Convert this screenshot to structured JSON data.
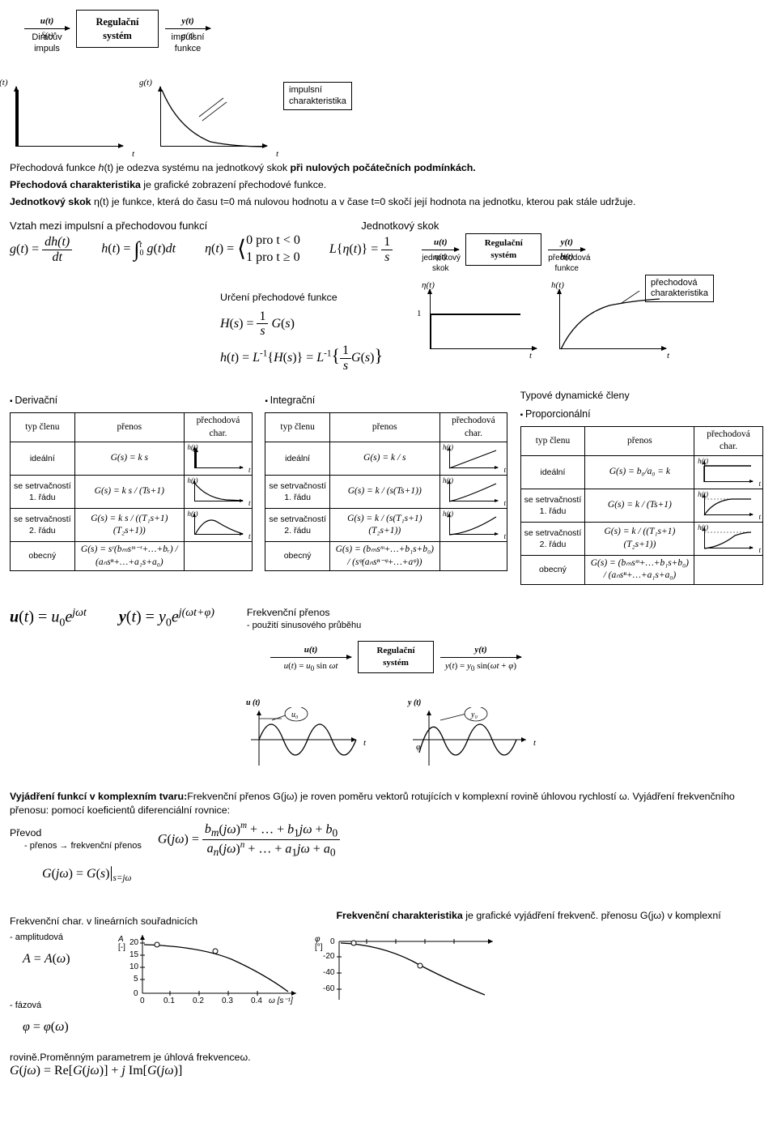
{
  "top": {
    "in_above": "u(t)",
    "in_below": "δ(t)",
    "in_caption": "Diracův impuls",
    "block": "Regulační\nsystém",
    "out_above": "y(t)",
    "out_below": "g(t)",
    "out_caption": "impulsní funkce"
  },
  "impulse_plot": {
    "ylabel": "δ(t)",
    "xlabel": "t"
  },
  "response_plot": {
    "ylabel": "g(t)",
    "xlabel": "t",
    "callout": "impulsní\ncharakteristika"
  },
  "text1": "Přechodová funkce ",
  "text1_hi": "h",
  "text1_arg": "(t)",
  "text1b": " je odezva systému na jednotkový skok ",
  "text1_bold": "při nulových počátečních podmínkách.",
  "text2": "Přechodová charakteristika",
  "text2b": " je grafické zobrazení přechodové funkce.",
  "text3": "Jednotkový skok ",
  "text3b": "η(t) je funkce, která do času t=0 má nulovou hodnotu a v čase t=0 skočí její hodnota na jednotku, kterou pak stále udržuje.",
  "heading_rel": "Vztah mezi impulsní a přechodovou funkcí",
  "heading_step": "Jednotkový skok",
  "eq_g": "g(t) = dh(t) / dt",
  "eq_h": "h(t) = ∫₀ᵗ g(t) dt",
  "eq_eta1": "0  pro  t < 0",
  "eq_eta2": "1  pro  t ≥ 0",
  "eq_Leta": "L{η(t)} = 1/s",
  "blk2": {
    "in_above": "u(t)",
    "in_below": "η(t)",
    "in_caption": "jednotkový skok",
    "block": "Regulační\nsystém",
    "out_above": "y(t)",
    "out_below": "h(t)",
    "out_caption": "přechodová funkce"
  },
  "det_head": "Určení přechodové funkce",
  "eq_Hs": "H(s) = (1/s) G(s)",
  "eq_ht": "h(t) = L⁻¹{H(s)} = L⁻¹{ (1/s) G(s) }",
  "step_plot": {
    "ylabel": "η(t)",
    "xlabel": "t",
    "tick": "1"
  },
  "ht_plot": {
    "ylabel": "h(t)",
    "xlabel": "t",
    "callout": "přechodová\ncharakteristika"
  },
  "typy_heading": "Typové dynamické členy",
  "members": {
    "derivacni": {
      "title": "Derivační",
      "col1": "typ členu",
      "col2": "přenos",
      "col3": "přechodová char.",
      "rows": [
        {
          "typ": "ideální",
          "g": "G(s) = k s",
          "curve": "impulse"
        },
        {
          "typ": "se setrvačností\n1. řádu",
          "g": "G(s) = k s / (Ts+1)",
          "curve": "expdecay"
        },
        {
          "typ": "se setrvačností\n2. řádu",
          "g": "G(s) = k s / ((T₁s+1)(T₂s+1))",
          "curve": "hump"
        },
        {
          "typ": "obecný",
          "g": "G(s) = sʳ(bₘsᵐ⁻ʳ+…+bᵣ) / (aₙsⁿ+…+a₁s+a₀)",
          "curve": ""
        }
      ]
    },
    "integracni": {
      "title": "Integrační",
      "col1": "typ členu",
      "col2": "přenos",
      "col3": "přechodová char.",
      "rows": [
        {
          "typ": "ideální",
          "g": "G(s) = k / s",
          "curve": "ramp"
        },
        {
          "typ": "se setrvačností\n1. řádu",
          "g": "G(s) = k / (s(Ts+1))",
          "curve": "ramp-soft"
        },
        {
          "typ": "se setrvačností\n2. řádu",
          "g": "G(s) = k / (s(T₁s+1)(T₂s+1))",
          "curve": "ramp-softer"
        },
        {
          "typ": "obecný",
          "g": "G(s) = (bₘsᵐ+…+b₁s+b₀) / (sᵠ(aₙsⁿ⁻ᵠ+…+aᵠ))",
          "curve": ""
        }
      ]
    },
    "proporcionalni": {
      "title": "Proporcionální",
      "col1": "typ členu",
      "col2": "přenos",
      "col3": "přechodová char.",
      "rows": [
        {
          "typ": "ideální",
          "g": "G(s) = b₀/a₀ = k",
          "curve": "step"
        },
        {
          "typ": "se setrvačností\n1. řádu",
          "g": "G(s) = k / (Ts+1)",
          "curve": "exp-sat"
        },
        {
          "typ": "se setrvačností\n2. řádu",
          "g": "G(s) = k / ((T₁s+1)(T₂s+1))",
          "curve": "exp-sat2"
        },
        {
          "typ": "obecný",
          "g": "G(s) = (bₘsᵐ+…+b₁s+b₀) / (aₙsⁿ+…+a₁s+a₀)",
          "curve": ""
        }
      ]
    }
  },
  "freq_head": "Frekvenční přenos",
  "freq_sub": "- použití sinusového průběhu",
  "eq_u": "u(t) = u₀ e^{jωt}",
  "eq_y": "y(t) = y₀ e^{j(ωt+φ)}",
  "blk3": {
    "in_above": "u(t)",
    "in_eq": "u(t) = u₀ sin ωt",
    "block": "Regulační\nsystém",
    "out_above": "y(t)",
    "out_eq": "y(t) = y₀ sin(ωt + φ)"
  },
  "sine_u": {
    "label": "u (t)",
    "amp": "u₀",
    "xlabel": "t"
  },
  "sine_y": {
    "label": "y (t)",
    "amp": "y₀",
    "phi": "φ",
    "xlabel": "t"
  },
  "freq_text1": "Vyjádření funkcí v komplexním tvaru:",
  "freq_text1b": "Frekvenční přenos G(jω) je roven poměru vektorů rotujících v komplexní rovině úhlovou rychlostí ω. Vyjádření frekvenčního přenosu: pomocí koeficientů diferenciální rovnice:",
  "prevod_head": "Převod",
  "prevod_sub": "- přenos → frekvenční přenos",
  "eq_Gjw": "G(jω) = (bₘ(jω)ᵐ + … + b₁jω + b₀) / (aₙ(jω)ⁿ + … + a₁jω + a₀)",
  "eq_Gjw2": "G(jω) = G(s)|_{s=jω}",
  "fchar_text": "Frekvenční charakteristika",
  "fchar_text2": " je grafické vyjádření frekvenč. přenosu G(jω) v komplexní",
  "linchar_head": "Frekvenční char. v lineárních souřadnicích",
  "amp_label": "- amplitudová",
  "amp_eq": "A = A(ω)",
  "phase_label": "- fázová",
  "phase_eq": "φ = φ(ω)",
  "bode": {
    "amp": {
      "ylabel": "A\n[-]",
      "yticks": [
        "20",
        "15",
        "10",
        "5",
        "0"
      ],
      "xticks": [
        "0",
        "0.1",
        "0.2",
        "0.3",
        "0.4"
      ],
      "xunit": "ω [s⁻¹]"
    },
    "phase": {
      "ylabel": "φ\n[°]",
      "yticks": [
        "0",
        "-20",
        "-40",
        "-60"
      ]
    }
  },
  "bottom1": "rovině.Proměnným parametrem je úhlová frekvence",
  "bottom1b": "ω.",
  "eq_last": "G(jω) = Re[G(jω)] + j Im[G(jω)]",
  "colors": {
    "line": "#000000",
    "bg": "#ffffff"
  }
}
